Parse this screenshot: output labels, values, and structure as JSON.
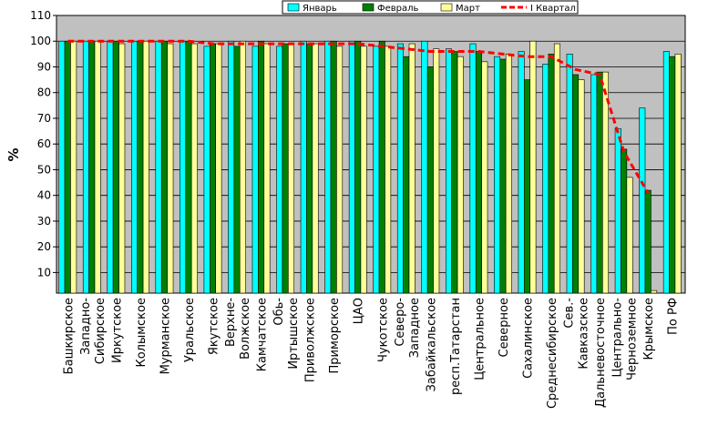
{
  "chart_data": {
    "type": "bar",
    "ylabel": "%",
    "ylim": [
      2,
      110
    ],
    "yticks": [
      10,
      20,
      30,
      40,
      50,
      60,
      70,
      80,
      90,
      100,
      110
    ],
    "grid": "horizontal",
    "legend_position": "top-right",
    "categories": [
      "Башкирское",
      "Западно-Сибирское",
      "Иркутское",
      "Колымское",
      "Мурманское",
      "Уральское",
      "Якутское",
      "Верхне-Волжское",
      "Камчатское",
      "Обь-Иртышское",
      "Приволжское",
      "Приморское",
      "ЦАО",
      "Чукотское",
      "Северо-Западное",
      "Забайкальское",
      "респ.Татарстан",
      "Центральное",
      "Северное",
      "Сахалинское",
      "Среднесибирское",
      "Сев.-Кавказское",
      "Дальневосточное",
      "Центрально-Черноземное",
      "Крымское",
      "По РФ"
    ],
    "category_lines": [
      [
        "Башкирское"
      ],
      [
        "Западно-",
        "Сибирское"
      ],
      [
        "Иркутское"
      ],
      [
        "Колымское"
      ],
      [
        "Мурманское"
      ],
      [
        "Уральское"
      ],
      [
        "Якутское"
      ],
      [
        "Верхне-",
        "Волжское"
      ],
      [
        "Камчатское"
      ],
      [
        "Обь-",
        "Иртышское"
      ],
      [
        "Приволжское"
      ],
      [
        "Приморское"
      ],
      [
        "ЦАО"
      ],
      [
        "Чукотское"
      ],
      [
        "Северо-",
        "Западное"
      ],
      [
        "Забайкальское"
      ],
      [
        "респ.Татарстан"
      ],
      [
        "Центральное"
      ],
      [
        "Северное"
      ],
      [
        "Сахалинское"
      ],
      [
        "Среднесибирское"
      ],
      [
        "Сев.-",
        "Кавказское"
      ],
      [
        "Дальневосточное"
      ],
      [
        "Центрально-",
        "Черноземное"
      ],
      [
        "Крымское"
      ],
      [
        "По РФ"
      ]
    ],
    "series": [
      {
        "name": "Январь",
        "kind": "bar",
        "color": "#00ffff",
        "values": [
          100,
          100,
          100,
          100,
          100,
          100,
          98,
          100,
          98,
          98,
          100,
          100,
          100,
          98,
          99,
          100,
          97,
          99,
          94,
          96,
          91,
          95,
          87,
          66,
          74,
          96
        ]
      },
      {
        "name": "Февраль",
        "kind": "bar",
        "color": "#008000",
        "values": [
          100,
          100,
          100,
          100,
          100,
          100,
          99,
          98,
          100,
          99,
          99,
          100,
          100,
          100,
          94,
          90,
          96,
          96,
          93,
          85,
          95,
          87,
          88,
          58,
          42,
          94
        ]
      },
      {
        "name": "Март",
        "kind": "bar",
        "color": "#ffff99",
        "values": [
          100,
          100,
          99,
          100,
          99,
          99,
          99,
          100,
          99,
          99,
          99,
          98,
          98,
          98,
          99,
          97,
          94,
          92,
          95,
          100,
          99,
          85,
          88,
          47,
          3,
          95
        ]
      },
      {
        "name": "I Квартал",
        "kind": "line",
        "color": "#ff0000",
        "values": [
          100,
          100,
          100,
          100,
          100,
          100,
          99,
          99,
          99,
          99,
          99,
          99,
          99,
          98,
          97,
          96,
          96,
          96,
          95,
          94,
          94,
          89,
          87,
          57,
          41,
          null
        ]
      }
    ]
  }
}
